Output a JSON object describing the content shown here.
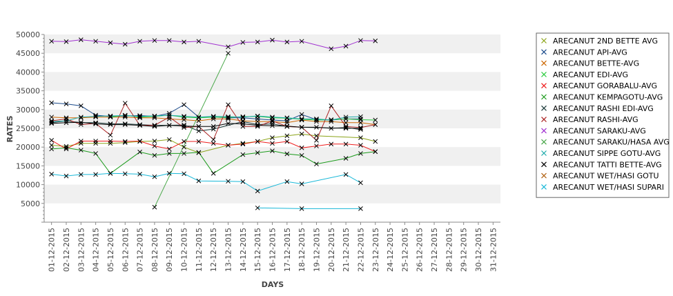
{
  "chart_data": {
    "type": "line",
    "title": "",
    "xlabel": "DAYS",
    "ylabel": "RATES",
    "ylim": [
      0,
      50000
    ],
    "yticks": [
      5000,
      10000,
      15000,
      20000,
      25000,
      30000,
      35000,
      40000,
      45000,
      50000
    ],
    "categories": [
      "01-12-2015",
      "02-12-2015",
      "03-12-2015",
      "04-12-2015",
      "05-12-2015",
      "06-12-2015",
      "07-12-2015",
      "08-12-2015",
      "09-12-2015",
      "10-12-2015",
      "11-12-2015",
      "12-12-2015",
      "13-12-2015",
      "14-12-2015",
      "15-12-2015",
      "16-12-2015",
      "17-12-2015",
      "18-12-2015",
      "19-12-2015",
      "20-12-2015",
      "21-12-2015",
      "22-12-2015",
      "23-12-2015",
      "24-12-2015",
      "25-12-2015",
      "26-12-2015",
      "27-12-2015",
      "28-12-2015",
      "29-12-2015",
      "30-12-2015",
      "31-12-2015"
    ],
    "grid": "alternating horizontal bands",
    "legend_position": "right",
    "series": [
      {
        "name": "ARECANUT 2ND BETTE AVG",
        "color": "#8aa317",
        "values": [
          20500,
          20200,
          21000,
          21000,
          21000,
          21200,
          21500,
          21600,
          22000,
          20000,
          18500,
          null,
          20500,
          21000,
          21500,
          22500,
          23000,
          23500,
          23000,
          null,
          null,
          22500,
          21500,
          null,
          null,
          null,
          null,
          null,
          null,
          null,
          null
        ]
      },
      {
        "name": "ARECANUT API-AVG",
        "color": "#1a4a8a",
        "values": [
          31800,
          31500,
          31000,
          28500,
          28200,
          28300,
          28400,
          28200,
          29000,
          31300,
          28000,
          28000,
          27800,
          27800,
          27500,
          27200,
          27000,
          28700,
          27300,
          27200,
          27500,
          27500,
          null,
          null,
          null,
          null,
          null,
          null,
          null,
          null,
          null
        ]
      },
      {
        "name": "ARECANUT BETTE-AVG",
        "color": "#cc6600",
        "values": [
          28000,
          27800,
          27800,
          28000,
          28000,
          28000,
          27800,
          27800,
          27500,
          27300,
          27000,
          27500,
          27500,
          27000,
          26800,
          26800,
          26500,
          27200,
          26800,
          26800,
          26500,
          26500,
          26000,
          null,
          null,
          null,
          null,
          null,
          null,
          null,
          null
        ]
      },
      {
        "name": "ARECANUT EDI-AVG",
        "color": "#2ecc40",
        "values": [
          null,
          null,
          null,
          null,
          28000,
          28500,
          28000,
          28200,
          28500,
          28000,
          27800,
          28000,
          27900,
          28100,
          28200,
          27800,
          27700,
          27400,
          27200,
          27300,
          27500,
          27300,
          27200,
          null,
          null,
          null,
          null,
          null,
          null,
          null,
          null
        ]
      },
      {
        "name": "ARECANUT GORABALU-AVG",
        "color": "#ee1c1c",
        "values": [
          21800,
          19500,
          21600,
          21600,
          21600,
          21500,
          21600,
          20300,
          19500,
          21500,
          21500,
          21000,
          20500,
          20800,
          21500,
          21000,
          21500,
          19800,
          20300,
          20800,
          20800,
          20500,
          18800,
          null,
          null,
          null,
          null,
          null,
          null,
          null,
          null
        ]
      },
      {
        "name": "ARECANUT KEMPAGOTU-AVG",
        "color": "#1a9a1a",
        "values": [
          19500,
          19800,
          19200,
          18300,
          13000,
          null,
          18700,
          17800,
          18300,
          18300,
          18600,
          13000,
          null,
          18000,
          18500,
          19000,
          18200,
          17800,
          15500,
          null,
          17000,
          18300,
          18800,
          null,
          null,
          null,
          null,
          null,
          null,
          null,
          null
        ]
      },
      {
        "name": "ARECANUT RASHI EDI-AVG",
        "color": "#1c3a3a",
        "values": [
          26500,
          27000,
          26500,
          26500,
          26200,
          26200,
          26000,
          25800,
          25800,
          25900,
          24300,
          24800,
          null,
          26800,
          26000,
          26200,
          25500,
          25300,
          null,
          null,
          25000,
          25000,
          null,
          null,
          null,
          null,
          null,
          null,
          null,
          null,
          null
        ]
      },
      {
        "name": "ARECANUT RASHI-AVG",
        "color": "#aa2222",
        "values": [
          27000,
          27500,
          26000,
          26300,
          23200,
          31700,
          25800,
          25800,
          28000,
          25200,
          25500,
          22000,
          31300,
          25500,
          25500,
          27000,
          25500,
          25300,
          21800,
          31000,
          25500,
          25200,
          26000,
          null,
          null,
          null,
          null,
          null,
          null,
          null,
          null
        ]
      },
      {
        "name": "ARECANUT SARAKU-AVG",
        "color": "#a030d0",
        "values": [
          48200,
          48100,
          48600,
          48200,
          47800,
          47400,
          48200,
          48400,
          48400,
          48000,
          48200,
          null,
          46700,
          47900,
          48000,
          48500,
          48000,
          48200,
          null,
          46200,
          46900,
          48400,
          48300,
          null,
          null,
          null,
          null,
          null,
          null,
          null,
          null
        ]
      },
      {
        "name": "ARECANUT SARAKU/HASA AVG",
        "color": "#4aa84a",
        "values": [
          null,
          null,
          null,
          null,
          null,
          null,
          null,
          4000,
          null,
          null,
          null,
          null,
          45000,
          null,
          null,
          null,
          null,
          null,
          null,
          null,
          null,
          null,
          null,
          null,
          null,
          null,
          null,
          null,
          null,
          null,
          null
        ]
      },
      {
        "name": "ARECANUT SIPPE GOTU-AVG",
        "color": "#19a9a9",
        "values": [
          26800,
          27000,
          28000,
          28200,
          28300,
          28400,
          28200,
          28300,
          28500,
          28200,
          28000,
          28200,
          28100,
          28000,
          28300,
          28000,
          27800,
          27500,
          27500,
          27200,
          28000,
          28100,
          null,
          null,
          null,
          null,
          null,
          null,
          null,
          null,
          null
        ]
      },
      {
        "name": "ARECANUT TATTI BETTE-AVG",
        "color": "#000000",
        "values": [
          26300,
          26500,
          26600,
          26200,
          26000,
          26000,
          25800,
          25500,
          25800,
          25600,
          25500,
          25500,
          26300,
          26200,
          25800,
          25700,
          25600,
          25300,
          25300,
          25000,
          25200,
          24700,
          null,
          null,
          null,
          null,
          null,
          null,
          null,
          null,
          null
        ]
      },
      {
        "name": "ARECANUT WET/HASI GOTU",
        "color": "#b06010",
        "values": [
          null,
          null,
          null,
          null,
          null,
          null,
          null,
          null,
          null,
          null,
          null,
          null,
          null,
          null,
          null,
          null,
          null,
          null,
          null,
          null,
          null,
          null,
          null,
          null,
          null,
          null,
          null,
          null,
          null,
          null,
          null
        ]
      },
      {
        "name": "ARECANUT WET/HASI SUPARI",
        "color": "#18b8d8",
        "values": [
          12800,
          12300,
          12700,
          12700,
          13000,
          12900,
          12800,
          12100,
          13000,
          12900,
          11000,
          null,
          10900,
          10800,
          8300,
          null,
          10800,
          10200,
          null,
          null,
          12700,
          10500,
          null,
          null,
          null,
          null,
          null,
          null,
          null,
          null,
          null
        ]
      }
    ],
    "extra_points": [
      {
        "series": "ARECANUT WET/HASI SUPARI",
        "values": [
          null,
          null,
          null,
          null,
          null,
          null,
          null,
          null,
          null,
          null,
          null,
          null,
          null,
          null,
          3800,
          null,
          null,
          3600,
          null,
          null,
          null,
          3600,
          null,
          null,
          null,
          null,
          null,
          null,
          null,
          null,
          null
        ]
      }
    ]
  }
}
